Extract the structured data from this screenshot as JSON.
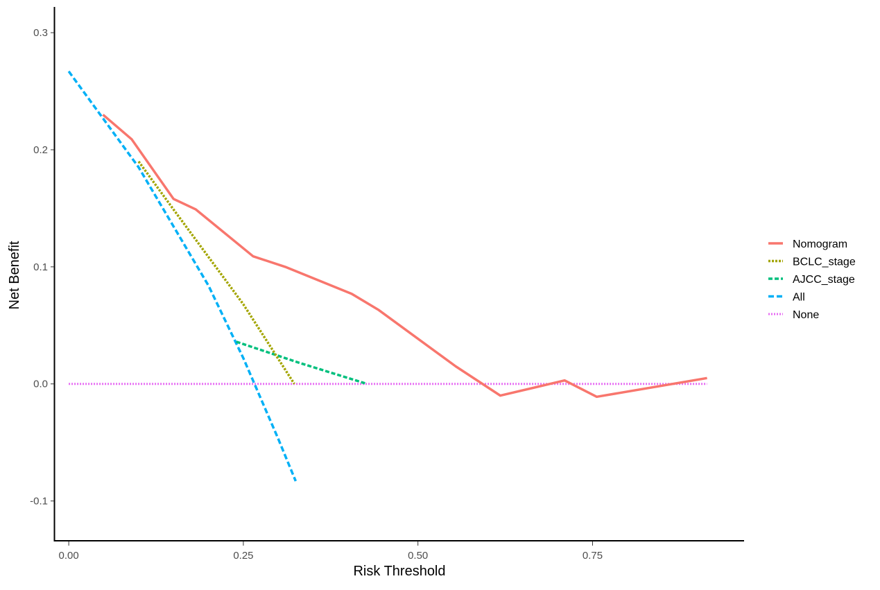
{
  "chart_data": {
    "type": "line",
    "title": "",
    "xlabel": "Risk Threshold",
    "ylabel": "Net Benefit",
    "xlim": [
      -0.02,
      0.967
    ],
    "ylim": [
      -0.134,
      0.322
    ],
    "x_ticks": [
      0.0,
      0.25,
      0.5,
      0.75
    ],
    "x_tick_labels": [
      "0.00",
      "0.25",
      "0.50",
      "0.75"
    ],
    "y_ticks": [
      -0.1,
      0.0,
      0.1,
      0.2,
      0.3
    ],
    "y_tick_labels": [
      "-0.1",
      "0.0",
      "0.1",
      "0.2",
      "0.3"
    ],
    "grid": false,
    "legend_position": "right",
    "series": [
      {
        "name": "Nomogram",
        "color": "#f8766d",
        "dash": "solid",
        "points": [
          [
            0.049,
            0.23
          ],
          [
            0.09,
            0.209
          ],
          [
            0.15,
            0.158
          ],
          [
            0.182,
            0.149
          ],
          [
            0.264,
            0.109
          ],
          [
            0.31,
            0.1
          ],
          [
            0.405,
            0.077
          ],
          [
            0.444,
            0.063
          ],
          [
            0.554,
            0.015
          ],
          [
            0.618,
            -0.01
          ],
          [
            0.71,
            0.003
          ],
          [
            0.756,
            -0.011
          ],
          [
            0.914,
            0.005
          ]
        ]
      },
      {
        "name": "BCLC_stage",
        "color": "#a3a500",
        "dash": "dotted",
        "points": [
          [
            0.1,
            0.19
          ],
          [
            0.15,
            0.149
          ],
          [
            0.25,
            0.068
          ],
          [
            0.323,
            0.0
          ]
        ]
      },
      {
        "name": "AJCC_stage",
        "color": "#00bf7d",
        "dash": "dashed-short",
        "points": [
          [
            0.24,
            0.036
          ],
          [
            0.33,
            0.018
          ],
          [
            0.427,
            0.0
          ]
        ]
      },
      {
        "name": "All",
        "color": "#00b0f6",
        "dash": "dashed",
        "points": [
          [
            0.0,
            0.267
          ],
          [
            0.1,
            0.185
          ],
          [
            0.2,
            0.084
          ],
          [
            0.25,
            0.022
          ],
          [
            0.3,
            -0.047
          ],
          [
            0.325,
            -0.083
          ]
        ]
      },
      {
        "name": "None",
        "color": "#e76bf3",
        "dash": "dotted-fine",
        "points": [
          [
            0.0,
            0.0
          ],
          [
            0.914,
            0.0
          ]
        ]
      }
    ]
  }
}
